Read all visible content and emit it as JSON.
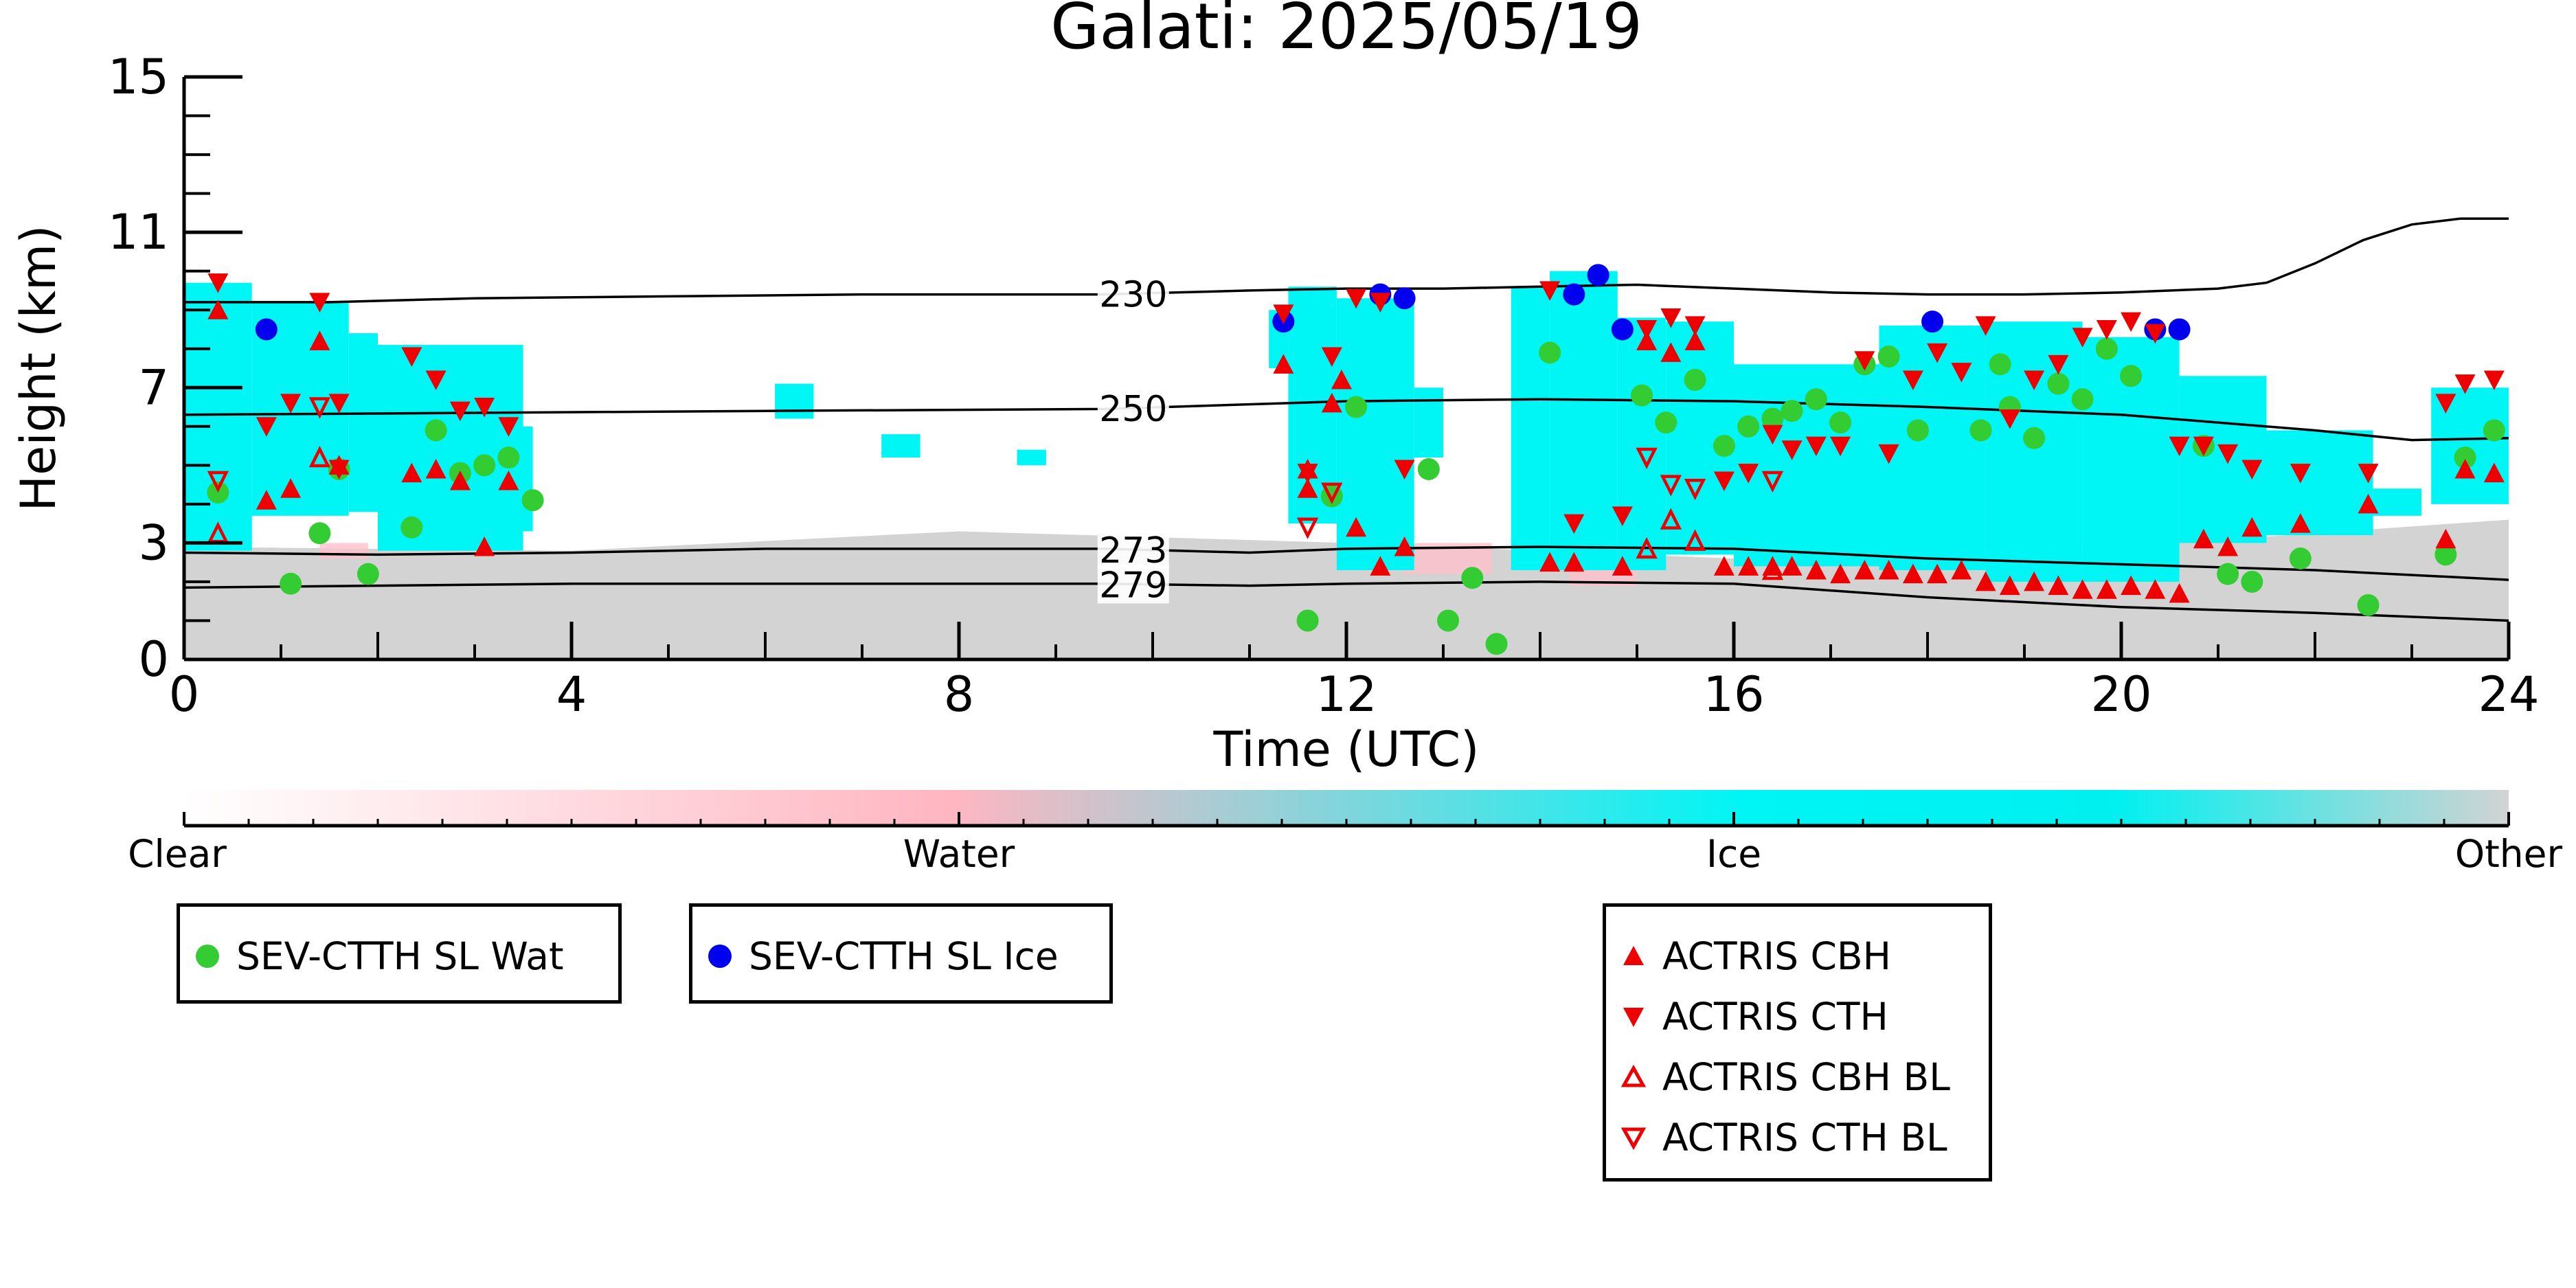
{
  "chart_data": {
    "type": "scatter",
    "title": "Galati: 2025/05/19",
    "xlabel": "Time (UTC)",
    "ylabel": "Height (km)",
    "xlim": [
      0,
      24
    ],
    "ylim": [
      0,
      15
    ],
    "xticks": [
      "0",
      "4",
      "8",
      "12",
      "16",
      "20",
      "24"
    ],
    "yticks": [
      "0",
      "3",
      "7",
      "11",
      "15"
    ],
    "colorbar": {
      "labels": [
        "Clear",
        "Water",
        "Ice",
        "Other"
      ],
      "colors": [
        "#ffffff",
        "#ffb6c1",
        "#00f5f5",
        "#d3d3d3"
      ]
    },
    "isotherms": [
      {
        "label": "230",
        "x": [
          0,
          1.5,
          3,
          5,
          7,
          9.5,
          11,
          12,
          13,
          14,
          15,
          16,
          17,
          18,
          19,
          20,
          21,
          21.5,
          22,
          22.5,
          23,
          23.5,
          24
        ],
        "y": [
          9.2,
          9.2,
          9.3,
          9.35,
          9.4,
          9.4,
          9.5,
          9.55,
          9.55,
          9.6,
          9.65,
          9.55,
          9.45,
          9.4,
          9.4,
          9.45,
          9.55,
          9.7,
          10.2,
          10.8,
          11.2,
          11.35,
          11.35
        ]
      },
      {
        "label": "250",
        "x": [
          0,
          3,
          6,
          9.5,
          12,
          14,
          16,
          18,
          20,
          22,
          23,
          24
        ],
        "y": [
          6.3,
          6.35,
          6.4,
          6.45,
          6.65,
          6.7,
          6.65,
          6.5,
          6.3,
          5.9,
          5.65,
          5.7
        ]
      },
      {
        "label": "273",
        "x": [
          0,
          2,
          4,
          6,
          8,
          9.5,
          11,
          12,
          14,
          16,
          18,
          20,
          22,
          24
        ],
        "y": [
          2.75,
          2.7,
          2.75,
          2.85,
          2.85,
          2.85,
          2.75,
          2.85,
          2.9,
          2.85,
          2.6,
          2.45,
          2.3,
          2.05
        ]
      },
      {
        "label": "279",
        "x": [
          0,
          2,
          4,
          6,
          8,
          9.5,
          11,
          12,
          14,
          16,
          18,
          20,
          22,
          24
        ],
        "y": [
          1.85,
          1.9,
          1.95,
          1.95,
          1.95,
          1.95,
          1.9,
          1.95,
          2.0,
          1.95,
          1.6,
          1.35,
          1.2,
          1.0
        ]
      }
    ],
    "series": [
      {
        "name": "SEV-CTTH SL Wat",
        "marker": "circle",
        "color": "#33cc33",
        "points": [
          [
            0.35,
            4.3
          ],
          [
            1.1,
            1.95
          ],
          [
            1.4,
            3.25
          ],
          [
            1.6,
            4.9
          ],
          [
            1.9,
            2.2
          ],
          [
            2.35,
            3.4
          ],
          [
            2.6,
            5.9
          ],
          [
            2.85,
            4.8
          ],
          [
            3.1,
            5.0
          ],
          [
            3.35,
            5.2
          ],
          [
            3.6,
            4.1
          ],
          [
            11.6,
            1.0
          ],
          [
            11.85,
            4.2
          ],
          [
            12.1,
            6.5
          ],
          [
            12.85,
            4.9
          ],
          [
            13.05,
            1.0
          ],
          [
            13.3,
            2.1
          ],
          [
            13.55,
            0.4
          ],
          [
            14.1,
            7.9
          ],
          [
            15.05,
            6.8
          ],
          [
            15.3,
            6.1
          ],
          [
            15.6,
            7.2
          ],
          [
            15.9,
            5.5
          ],
          [
            16.15,
            6.0
          ],
          [
            16.4,
            6.2
          ],
          [
            16.6,
            6.4
          ],
          [
            16.85,
            6.7
          ],
          [
            17.1,
            6.1
          ],
          [
            17.35,
            7.6
          ],
          [
            17.6,
            7.8
          ],
          [
            17.9,
            5.9
          ],
          [
            18.55,
            5.9
          ],
          [
            18.75,
            7.6
          ],
          [
            18.85,
            6.5
          ],
          [
            19.1,
            5.7
          ],
          [
            19.35,
            7.1
          ],
          [
            19.6,
            6.7
          ],
          [
            19.85,
            8.0
          ],
          [
            20.1,
            7.3
          ],
          [
            20.85,
            5.5
          ],
          [
            21.1,
            2.2
          ],
          [
            21.35,
            2.0
          ],
          [
            21.85,
            2.6
          ],
          [
            22.55,
            1.4
          ],
          [
            23.35,
            2.7
          ],
          [
            23.55,
            5.2
          ],
          [
            23.85,
            5.9
          ]
        ]
      },
      {
        "name": "SEV-CTTH SL Ice",
        "marker": "circle",
        "color": "#0000ee",
        "points": [
          [
            0.85,
            8.5
          ],
          [
            11.35,
            8.7
          ],
          [
            12.35,
            9.4
          ],
          [
            12.6,
            9.3
          ],
          [
            14.35,
            9.4
          ],
          [
            14.6,
            9.9
          ],
          [
            14.85,
            8.5
          ],
          [
            18.05,
            8.7
          ],
          [
            20.35,
            8.5
          ],
          [
            20.6,
            8.5
          ]
        ]
      },
      {
        "name": "ACTRIS CBH",
        "marker": "triangle-up",
        "color": "#ee0000",
        "points": [
          [
            0.35,
            9.0
          ],
          [
            0.85,
            4.1
          ],
          [
            1.1,
            4.4
          ],
          [
            1.4,
            8.2
          ],
          [
            1.6,
            5.0
          ],
          [
            2.35,
            4.8
          ],
          [
            2.6,
            4.9
          ],
          [
            2.85,
            4.6
          ],
          [
            3.1,
            2.9
          ],
          [
            3.35,
            4.6
          ],
          [
            11.35,
            7.6
          ],
          [
            11.6,
            4.4
          ],
          [
            11.6,
            4.9
          ],
          [
            11.85,
            6.6
          ],
          [
            11.95,
            7.2
          ],
          [
            12.1,
            3.4
          ],
          [
            12.35,
            2.4
          ],
          [
            12.6,
            2.9
          ],
          [
            14.35,
            2.5
          ],
          [
            14.1,
            2.5
          ],
          [
            14.85,
            2.4
          ],
          [
            15.1,
            8.2
          ],
          [
            15.35,
            7.9
          ],
          [
            15.6,
            8.2
          ],
          [
            15.9,
            2.4
          ],
          [
            16.15,
            2.4
          ],
          [
            16.4,
            2.4
          ],
          [
            16.6,
            2.4
          ],
          [
            16.85,
            2.3
          ],
          [
            17.1,
            2.2
          ],
          [
            17.35,
            2.3
          ],
          [
            17.6,
            2.3
          ],
          [
            17.85,
            2.2
          ],
          [
            18.1,
            2.2
          ],
          [
            18.35,
            2.3
          ],
          [
            18.6,
            2.0
          ],
          [
            18.85,
            1.9
          ],
          [
            19.1,
            2.0
          ],
          [
            19.35,
            1.9
          ],
          [
            19.6,
            1.8
          ],
          [
            19.85,
            1.8
          ],
          [
            20.1,
            1.9
          ],
          [
            20.35,
            1.8
          ],
          [
            20.6,
            1.7
          ],
          [
            20.85,
            3.1
          ],
          [
            21.1,
            2.9
          ],
          [
            21.35,
            3.4
          ],
          [
            21.85,
            3.5
          ],
          [
            22.55,
            4.0
          ],
          [
            23.35,
            3.1
          ],
          [
            23.55,
            4.9
          ],
          [
            23.85,
            4.8
          ]
        ]
      },
      {
        "name": "ACTRIS CTH",
        "marker": "triangle-down",
        "color": "#ee0000",
        "points": [
          [
            0.35,
            9.7
          ],
          [
            0.85,
            6.0
          ],
          [
            1.1,
            6.6
          ],
          [
            1.4,
            9.2
          ],
          [
            1.6,
            6.6
          ],
          [
            1.6,
            4.9
          ],
          [
            2.35,
            7.8
          ],
          [
            2.6,
            7.2
          ],
          [
            2.85,
            6.4
          ],
          [
            3.1,
            6.5
          ],
          [
            3.35,
            6.0
          ],
          [
            11.35,
            8.9
          ],
          [
            11.6,
            4.8
          ],
          [
            11.85,
            7.8
          ],
          [
            12.1,
            9.3
          ],
          [
            12.35,
            9.2
          ],
          [
            12.6,
            4.9
          ],
          [
            14.1,
            9.5
          ],
          [
            14.35,
            3.5
          ],
          [
            14.85,
            3.7
          ],
          [
            15.1,
            8.5
          ],
          [
            15.35,
            8.8
          ],
          [
            15.6,
            8.6
          ],
          [
            15.9,
            4.6
          ],
          [
            16.15,
            4.8
          ],
          [
            16.4,
            5.8
          ],
          [
            16.6,
            5.4
          ],
          [
            16.85,
            5.5
          ],
          [
            17.1,
            5.5
          ],
          [
            17.35,
            7.7
          ],
          [
            17.6,
            5.3
          ],
          [
            17.85,
            7.2
          ],
          [
            18.1,
            7.9
          ],
          [
            18.35,
            7.4
          ],
          [
            18.6,
            8.6
          ],
          [
            18.85,
            6.2
          ],
          [
            19.1,
            7.2
          ],
          [
            19.35,
            7.6
          ],
          [
            19.6,
            8.3
          ],
          [
            19.85,
            8.5
          ],
          [
            20.1,
            8.7
          ],
          [
            20.35,
            8.4
          ],
          [
            20.6,
            5.5
          ],
          [
            20.85,
            5.5
          ],
          [
            21.1,
            5.3
          ],
          [
            21.35,
            4.9
          ],
          [
            21.85,
            4.8
          ],
          [
            22.55,
            4.8
          ],
          [
            23.35,
            6.6
          ],
          [
            23.55,
            7.1
          ],
          [
            23.85,
            7.2
          ]
        ]
      },
      {
        "name": "ACTRIS CBH BL",
        "marker": "triangle-up-open",
        "color": "#ee0000",
        "points": [
          [
            0.35,
            3.25
          ],
          [
            1.4,
            5.2
          ],
          [
            15.1,
            2.85
          ],
          [
            15.35,
            3.6
          ],
          [
            15.6,
            3.05
          ],
          [
            16.4,
            2.3
          ]
        ]
      },
      {
        "name": "ACTRIS CTH BL",
        "marker": "triangle-down-open",
        "color": "#ee0000",
        "points": [
          [
            0.35,
            4.6
          ],
          [
            1.4,
            6.5
          ],
          [
            11.6,
            3.4
          ],
          [
            11.85,
            4.3
          ],
          [
            15.1,
            5.2
          ],
          [
            15.35,
            4.5
          ],
          [
            15.6,
            4.4
          ],
          [
            16.4,
            4.6
          ]
        ]
      }
    ],
    "legend": [
      {
        "label": "SEV-CTTH SL Wat"
      },
      {
        "label": "SEV-CTTH SL Ice"
      },
      {
        "label": "ACTRIS CBH"
      },
      {
        "label": "ACTRIS CTH"
      },
      {
        "label": "ACTRIS CBH BL"
      },
      {
        "label": "ACTRIS CTH BL"
      }
    ],
    "grid": false
  }
}
